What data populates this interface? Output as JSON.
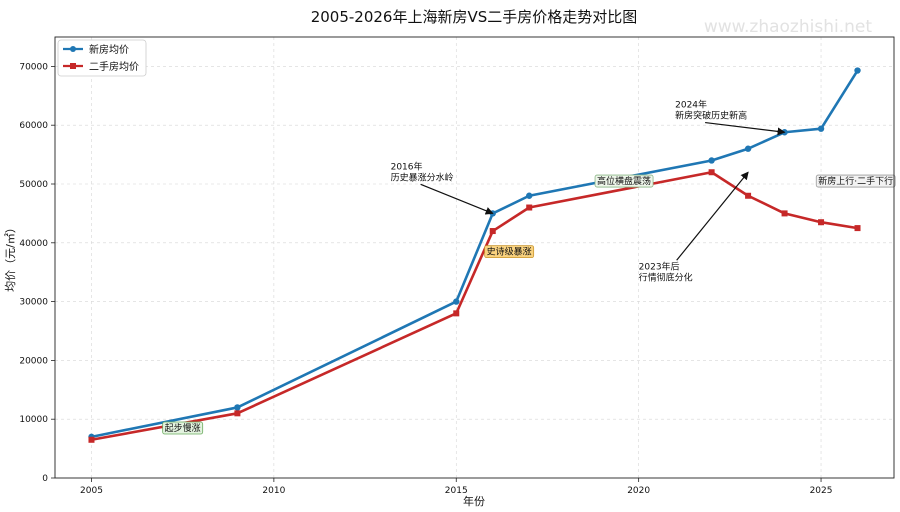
{
  "watermark": "www.zhaozhishi.net",
  "chart_data": {
    "type": "line",
    "title": "2005-2026年上海新房VS二手房价格走势对比图",
    "xlabel": "年份",
    "ylabel": "均价（元/㎡）",
    "xlim": [
      2004.0,
      2027.0
    ],
    "ylim": [
      0,
      75000
    ],
    "xticks": [
      2005,
      2010,
      2015,
      2020,
      2025
    ],
    "yticks": [
      0,
      10000,
      20000,
      30000,
      40000,
      50000,
      60000,
      70000
    ],
    "grid": true,
    "legend_position": "top-left",
    "series": [
      {
        "name": "新房均价",
        "color": "#1f77b4",
        "marker": "circle",
        "points": [
          [
            2005,
            7000
          ],
          [
            2009,
            12000
          ],
          [
            2015,
            30000
          ],
          [
            2016,
            45000
          ],
          [
            2017,
            48000
          ],
          [
            2022,
            54000
          ],
          [
            2023,
            56000
          ],
          [
            2024,
            58800
          ],
          [
            2025,
            59400
          ],
          [
            2026,
            69300
          ]
        ]
      },
      {
        "name": "二手房均价",
        "color": "#c62828",
        "marker": "square",
        "points": [
          [
            2005,
            6500
          ],
          [
            2009,
            11000
          ],
          [
            2015,
            28000
          ],
          [
            2016,
            42000
          ],
          [
            2017,
            46000
          ],
          [
            2022,
            52000
          ],
          [
            2023,
            48000
          ],
          [
            2024,
            45000
          ],
          [
            2025,
            43500
          ],
          [
            2026,
            42500
          ]
        ]
      }
    ],
    "arrow_annotations": [
      {
        "id": "ann-2016",
        "lines": [
          "2016年",
          "历史暴涨分水岭"
        ],
        "text_at": [
          2013.2,
          52500
        ],
        "arrow_to": [
          2016.0,
          45000
        ]
      },
      {
        "id": "ann-2024",
        "lines": [
          "2024年",
          "新房突破历史新高"
        ],
        "text_at": [
          2021.0,
          63000
        ],
        "arrow_to": [
          2024.0,
          58800
        ]
      },
      {
        "id": "ann-2023",
        "lines": [
          "2023年后",
          "行情彻底分化"
        ],
        "text_at": [
          2020.0,
          35500
        ],
        "arrow_to": [
          2023.0,
          52000
        ]
      }
    ],
    "box_annotations": [
      {
        "id": "stage-start",
        "text": "起步慢涨",
        "at": [
          2007.5,
          8500
        ],
        "fill": "#e3f3df",
        "stroke": "#6aaa5e"
      },
      {
        "id": "stage-boom",
        "text": "史诗级暴涨",
        "at": [
          2016.45,
          38500
        ],
        "fill": "#f9d27f",
        "stroke": "#c9962f"
      },
      {
        "id": "stage-plateau",
        "text": "高位横盘震荡",
        "at": [
          2019.6,
          50500
        ],
        "fill": "#eef6ea",
        "stroke": "#8ab585"
      },
      {
        "id": "stage-divergence",
        "text": "新房上行·二手下行",
        "at": [
          2025.95,
          50500
        ],
        "fill": "#f2f2f2",
        "stroke": "#9a9a9a"
      }
    ]
  }
}
